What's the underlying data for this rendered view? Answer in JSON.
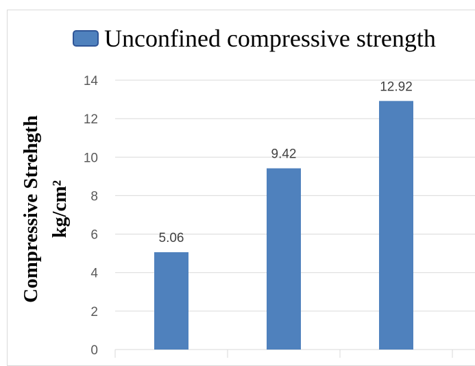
{
  "chart_data": {
    "type": "bar",
    "categories": [
      "",
      "",
      ""
    ],
    "series": [
      {
        "name": "Unconfined compressive strength",
        "values": [
          5.06,
          9.42,
          12.92
        ]
      }
    ],
    "data_labels": [
      "5.06",
      "9.42",
      "12.92"
    ],
    "ylabel_line1": "Compressive Strehgth",
    "ylabel_line2": "kg/cm²",
    "ylim": [
      0,
      14
    ],
    "yticks": [
      0,
      2,
      4,
      6,
      8,
      10,
      12,
      14
    ],
    "grid": true,
    "legend_position": "top",
    "colors": {
      "bar": "#4f81bd",
      "bar_edge": "#41719c",
      "grid": "#d9d9d9"
    }
  }
}
